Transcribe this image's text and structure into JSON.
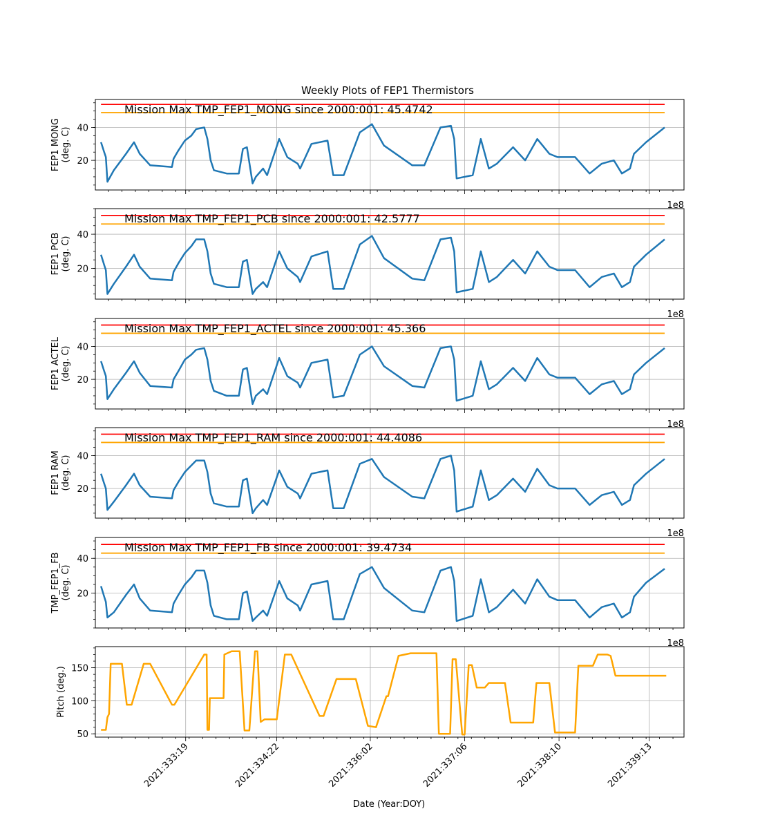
{
  "figure": {
    "title": "Weekly Plots of FEP1 Thermistors",
    "xlabel": "Date (Year:DOY)",
    "offset_label": "1e8"
  },
  "colors": {
    "data": "#1f77b4",
    "mission_max": "#ff0000",
    "limit": "#ffa500",
    "pitch": "#ffa500",
    "grid": "#b0b0b0"
  },
  "chart_data": [
    {
      "type": "line",
      "ylabel": [
        "FEP1 MONG",
        "(deg. C)"
      ],
      "annotation": "Mission Max TMP_FEP1_MONG since 2000:001: 45.4742",
      "yticks": [
        20,
        40
      ],
      "ylim": [
        2,
        57
      ],
      "mission_max_line": 54,
      "limit_line": 49,
      "x_day": [
        332.74,
        332.78,
        332.8,
        332.82,
        332.9,
        333.05,
        333.15,
        333.22,
        333.35,
        333.62,
        333.64,
        333.7,
        333.78,
        333.86,
        333.92,
        334.02,
        334.06,
        334.1,
        334.14,
        334.3,
        334.45,
        334.5,
        334.55,
        334.62,
        334.66,
        334.75,
        334.8,
        334.95,
        335.05,
        335.18,
        335.21,
        335.35,
        335.55,
        335.62,
        335.75,
        335.95,
        336.1,
        336.25,
        336.6,
        336.75,
        336.95,
        337.08,
        337.12,
        337.15,
        337.35,
        337.45,
        337.55,
        337.65,
        337.85,
        338.0,
        338.15,
        338.3,
        338.4,
        338.62,
        338.8,
        338.95,
        339.1,
        339.2,
        339.3,
        339.35,
        339.5,
        339.73
      ],
      "values": [
        31,
        25,
        22,
        7,
        14,
        24,
        31,
        24,
        17,
        16,
        21,
        26,
        32,
        35,
        39,
        40,
        33,
        20,
        14,
        12,
        12,
        27,
        28,
        6,
        10,
        15,
        11,
        33,
        22,
        18,
        15,
        30,
        32,
        11,
        11,
        37,
        42,
        29,
        17,
        17,
        40,
        41,
        33,
        9,
        11,
        33,
        15,
        18,
        28,
        20,
        33,
        24,
        22,
        22,
        12,
        18,
        20,
        12,
        15,
        24,
        31,
        40
      ]
    },
    {
      "type": "line",
      "ylabel": [
        "FEP1 PCB",
        "(deg. C)"
      ],
      "annotation": "Mission Max TMP_FEP1_PCB since 2000:001: 42.5777",
      "yticks": [
        20,
        40
      ],
      "ylim": [
        2,
        55
      ],
      "mission_max_line": 51,
      "limit_line": 46,
      "x_day": [
        332.74,
        332.78,
        332.8,
        332.82,
        332.9,
        333.05,
        333.15,
        333.22,
        333.35,
        333.62,
        333.64,
        333.7,
        333.78,
        333.86,
        333.92,
        334.02,
        334.06,
        334.1,
        334.14,
        334.3,
        334.45,
        334.5,
        334.55,
        334.62,
        334.66,
        334.75,
        334.8,
        334.95,
        335.05,
        335.18,
        335.21,
        335.35,
        335.55,
        335.62,
        335.75,
        335.95,
        336.1,
        336.25,
        336.6,
        336.75,
        336.95,
        337.08,
        337.12,
        337.15,
        337.35,
        337.45,
        337.55,
        337.65,
        337.85,
        338.0,
        338.15,
        338.3,
        338.4,
        338.62,
        338.8,
        338.95,
        339.1,
        339.2,
        339.3,
        339.35,
        339.5,
        339.73
      ],
      "values": [
        28,
        22,
        19,
        5,
        11,
        21,
        28,
        21,
        14,
        13,
        18,
        23,
        29,
        33,
        37,
        37,
        30,
        17,
        11,
        9,
        9,
        24,
        25,
        5,
        8,
        12,
        9,
        30,
        20,
        15,
        12,
        27,
        30,
        8,
        8,
        34,
        39,
        26,
        14,
        13,
        37,
        38,
        30,
        6,
        8,
        30,
        12,
        15,
        25,
        17,
        30,
        21,
        19,
        19,
        9,
        15,
        17,
        9,
        12,
        21,
        28,
        37
      ]
    },
    {
      "type": "line",
      "ylabel": [
        "FEP1 ACTEL",
        "(deg. C)"
      ],
      "annotation": "Mission Max TMP_FEP1_ACTEL since 2000:001: 45.366",
      "yticks": [
        20,
        40
      ],
      "ylim": [
        2,
        57
      ],
      "mission_max_line": 53,
      "limit_line": 48,
      "x_day": [
        332.74,
        332.78,
        332.8,
        332.82,
        332.9,
        333.05,
        333.15,
        333.22,
        333.35,
        333.62,
        333.64,
        333.7,
        333.78,
        333.86,
        333.92,
        334.02,
        334.06,
        334.1,
        334.14,
        334.3,
        334.45,
        334.5,
        334.55,
        334.62,
        334.66,
        334.75,
        334.8,
        334.95,
        335.05,
        335.18,
        335.21,
        335.35,
        335.55,
        335.62,
        335.75,
        335.95,
        336.1,
        336.25,
        336.6,
        336.75,
        336.95,
        337.08,
        337.12,
        337.15,
        337.35,
        337.45,
        337.55,
        337.65,
        337.85,
        338.0,
        338.15,
        338.3,
        338.4,
        338.62,
        338.8,
        338.95,
        339.1,
        339.2,
        339.3,
        339.35,
        339.5,
        339.73
      ],
      "values": [
        31,
        25,
        22,
        8,
        14,
        24,
        31,
        24,
        16,
        15,
        20,
        25,
        32,
        35,
        38,
        39,
        32,
        19,
        13,
        10,
        10,
        26,
        27,
        5,
        10,
        14,
        11,
        33,
        22,
        18,
        15,
        30,
        32,
        9,
        10,
        35,
        40,
        28,
        16,
        15,
        39,
        40,
        32,
        7,
        10,
        31,
        14,
        17,
        27,
        19,
        33,
        23,
        21,
        21,
        11,
        17,
        19,
        11,
        14,
        23,
        30,
        39
      ]
    },
    {
      "type": "line",
      "ylabel": [
        "FEP1 RAM",
        "(deg. C)"
      ],
      "annotation": "Mission Max TMP_FEP1_RAM since 2000:001: 44.4086",
      "yticks": [
        20,
        40
      ],
      "ylim": [
        2,
        57
      ],
      "mission_max_line": 53,
      "limit_line": 48,
      "x_day": [
        332.74,
        332.78,
        332.8,
        332.82,
        332.9,
        333.05,
        333.15,
        333.22,
        333.35,
        333.62,
        333.64,
        333.7,
        333.78,
        333.86,
        333.92,
        334.02,
        334.06,
        334.1,
        334.14,
        334.3,
        334.45,
        334.5,
        334.55,
        334.62,
        334.66,
        334.75,
        334.8,
        334.95,
        335.05,
        335.18,
        335.21,
        335.35,
        335.55,
        335.62,
        335.75,
        335.95,
        336.1,
        336.25,
        336.6,
        336.75,
        336.95,
        337.08,
        337.12,
        337.15,
        337.35,
        337.45,
        337.55,
        337.65,
        337.85,
        338.0,
        338.15,
        338.3,
        338.4,
        338.62,
        338.8,
        338.95,
        339.1,
        339.2,
        339.3,
        339.35,
        339.5,
        339.73
      ],
      "values": [
        29,
        23,
        20,
        7,
        12,
        22,
        29,
        22,
        15,
        14,
        19,
        24,
        30,
        34,
        37,
        37,
        30,
        17,
        11,
        9,
        9,
        25,
        26,
        5,
        8,
        13,
        10,
        31,
        21,
        17,
        14,
        29,
        31,
        8,
        8,
        35,
        38,
        27,
        15,
        14,
        38,
        40,
        31,
        6,
        9,
        31,
        13,
        16,
        26,
        18,
        32,
        22,
        20,
        20,
        10,
        16,
        18,
        10,
        13,
        22,
        29,
        38
      ]
    },
    {
      "type": "line",
      "ylabel": [
        "TMP_FEP1_FB",
        "(deg. C)"
      ],
      "annotation": "Mission Max TMP_FEP1_FB since 2000:001: 39.4734",
      "yticks": [
        20,
        40
      ],
      "ylim": [
        0,
        52
      ],
      "mission_max_line": 48,
      "limit_line": 43,
      "x_day": [
        332.74,
        332.78,
        332.8,
        332.82,
        332.9,
        333.05,
        333.15,
        333.22,
        333.35,
        333.62,
        333.64,
        333.7,
        333.78,
        333.86,
        333.92,
        334.02,
        334.06,
        334.1,
        334.14,
        334.3,
        334.45,
        334.5,
        334.55,
        334.62,
        334.66,
        334.75,
        334.8,
        334.95,
        335.05,
        335.18,
        335.21,
        335.35,
        335.55,
        335.62,
        335.75,
        335.95,
        336.1,
        336.25,
        336.6,
        336.75,
        336.95,
        337.08,
        337.12,
        337.15,
        337.35,
        337.45,
        337.55,
        337.65,
        337.85,
        338.0,
        338.15,
        338.3,
        338.4,
        338.62,
        338.8,
        338.95,
        339.1,
        339.2,
        339.3,
        339.35,
        339.5,
        339.73
      ],
      "values": [
        24,
        18,
        15,
        6,
        9,
        19,
        25,
        17,
        10,
        9,
        14,
        19,
        25,
        29,
        33,
        33,
        26,
        13,
        7,
        5,
        5,
        20,
        21,
        4,
        6,
        10,
        7,
        27,
        17,
        13,
        10,
        25,
        27,
        5,
        5,
        31,
        35,
        23,
        10,
        9,
        33,
        35,
        27,
        4,
        7,
        28,
        9,
        12,
        22,
        14,
        28,
        18,
        16,
        16,
        6,
        12,
        14,
        6,
        9,
        18,
        26,
        34
      ]
    },
    {
      "type": "line",
      "ylabel": [
        "Pitch (deg.)"
      ],
      "annotation": "",
      "yticks": [
        50,
        100,
        150
      ],
      "ylim": [
        45,
        182
      ],
      "x_day": [
        332.74,
        332.8,
        332.82,
        332.84,
        332.86,
        333.0,
        333.06,
        333.12,
        333.27,
        333.35,
        333.62,
        333.65,
        334.02,
        334.05,
        334.06,
        334.08,
        334.09,
        334.26,
        334.27,
        334.36,
        334.41,
        334.46,
        334.52,
        334.58,
        334.65,
        334.68,
        334.72,
        334.77,
        334.85,
        334.92,
        335.02,
        335.1,
        335.45,
        335.5,
        335.66,
        335.9,
        336.05,
        336.15,
        336.28,
        336.3,
        336.43,
        336.58,
        336.9,
        336.93,
        337.07,
        337.1,
        337.14,
        337.22,
        337.25,
        337.3,
        337.34,
        337.4,
        337.5,
        337.55,
        337.75,
        337.82,
        338.1,
        338.14,
        338.3,
        338.37,
        338.62,
        338.66,
        338.84,
        338.9,
        339.02,
        339.06,
        339.12,
        339.2,
        339.25,
        339.35,
        339.42,
        339.5,
        339.6,
        339.65,
        339.75
      ],
      "values": [
        56,
        56,
        75,
        80,
        156,
        156,
        94,
        94,
        156,
        156,
        94,
        94,
        170,
        170,
        56,
        56,
        104,
        104,
        170,
        175,
        175,
        175,
        55,
        55,
        175,
        175,
        68,
        72,
        72,
        72,
        170,
        170,
        77,
        77,
        133,
        133,
        62,
        60,
        107,
        107,
        168,
        172,
        172,
        50,
        50,
        163,
        163,
        49,
        49,
        154,
        154,
        120,
        120,
        127,
        127,
        67,
        67,
        127,
        127,
        52,
        52,
        153,
        153,
        170,
        170,
        168,
        138,
        138,
        138,
        138,
        138,
        138,
        138,
        138,
        138
      ]
    }
  ],
  "x_axis": {
    "type": "date",
    "range_day": [
      332.67,
      339.97
    ],
    "ticks": [
      {
        "day": 333.79,
        "label": "2021:333:19"
      },
      {
        "day": 334.92,
        "label": "2021:334:22"
      },
      {
        "day": 336.08,
        "label": "2021:336:02"
      },
      {
        "day": 337.25,
        "label": "2021:337:06"
      },
      {
        "day": 338.42,
        "label": "2021:338:10"
      },
      {
        "day": 339.54,
        "label": "2021:339:13"
      }
    ]
  }
}
